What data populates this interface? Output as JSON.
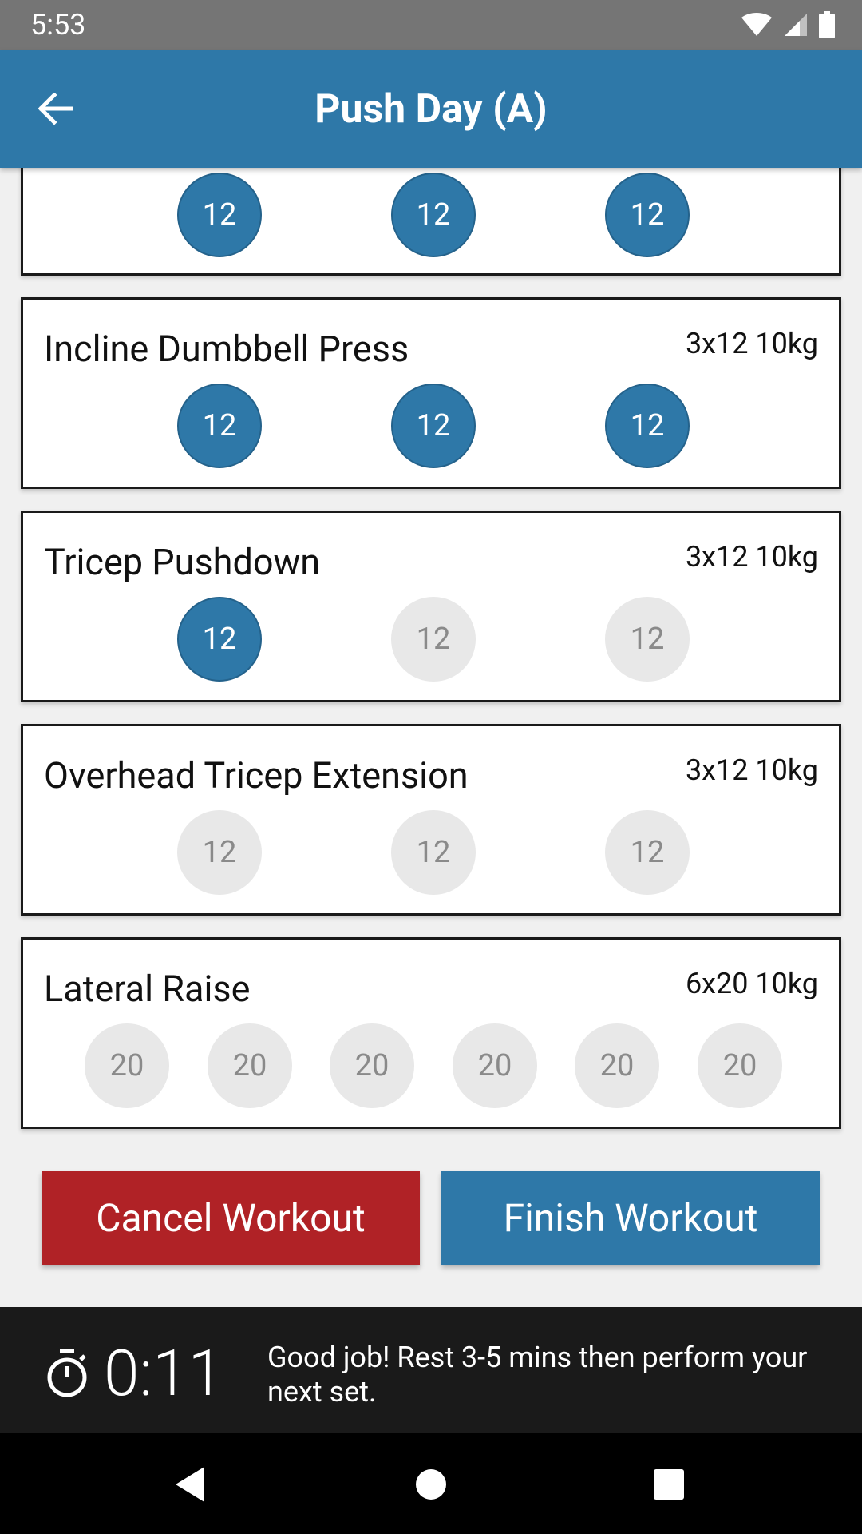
{
  "status": {
    "time": "5:53"
  },
  "app_bar": {
    "title": "Push Day (A)"
  },
  "exercises": [
    {
      "name": "",
      "scheme": "",
      "sets": [
        {
          "reps": "12",
          "done": true
        },
        {
          "reps": "12",
          "done": true
        },
        {
          "reps": "12",
          "done": true
        }
      ]
    },
    {
      "name": "Incline Dumbbell Press",
      "scheme": "3x12 10kg",
      "sets": [
        {
          "reps": "12",
          "done": true
        },
        {
          "reps": "12",
          "done": true
        },
        {
          "reps": "12",
          "done": true
        }
      ]
    },
    {
      "name": "Tricep Pushdown",
      "scheme": "3x12 10kg",
      "sets": [
        {
          "reps": "12",
          "done": true
        },
        {
          "reps": "12",
          "done": false
        },
        {
          "reps": "12",
          "done": false
        }
      ]
    },
    {
      "name": "Overhead Tricep Extension",
      "scheme": "3x12 10kg",
      "sets": [
        {
          "reps": "12",
          "done": false
        },
        {
          "reps": "12",
          "done": false
        },
        {
          "reps": "12",
          "done": false
        }
      ]
    },
    {
      "name": "Lateral Raise",
      "scheme": "6x20 10kg",
      "sets": [
        {
          "reps": "20",
          "done": false
        },
        {
          "reps": "20",
          "done": false
        },
        {
          "reps": "20",
          "done": false
        },
        {
          "reps": "20",
          "done": false
        },
        {
          "reps": "20",
          "done": false
        },
        {
          "reps": "20",
          "done": false
        }
      ]
    }
  ],
  "actions": {
    "cancel_label": "Cancel Workout",
    "finish_label": "Finish Workout"
  },
  "rest": {
    "timer": "0:11",
    "message": "Good job! Rest 3-5 mins then perform your next set."
  },
  "icons": {
    "back": "arrow-left-icon",
    "timer": "stopwatch-icon",
    "nav_back": "triangle-back-icon",
    "nav_home": "circle-home-icon",
    "nav_recents": "square-recents-icon",
    "wifi": "wifi-icon",
    "signal": "signal-icon",
    "battery": "battery-icon"
  },
  "colors": {
    "primary": "#2e78a8",
    "danger": "#b02226",
    "set_pending": "#e8e8e8",
    "rest_bar": "#1a1a1a"
  }
}
